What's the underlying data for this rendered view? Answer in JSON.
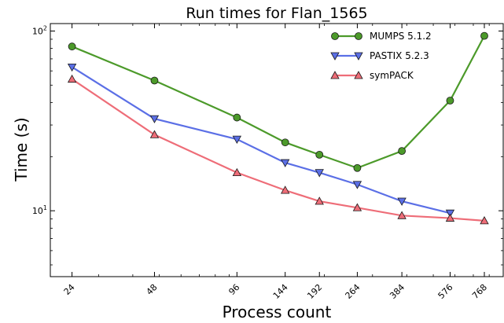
{
  "chart_data": {
    "type": "line",
    "title": "Run times for Flan_1565",
    "xlabel": "Process count",
    "ylabel": "Time (s)",
    "x_scale": "log",
    "y_scale": "log",
    "categories": [
      "24",
      "48",
      "96",
      "144",
      "192",
      "264",
      "384",
      "576",
      "768"
    ],
    "x": [
      24,
      48,
      96,
      144,
      192,
      264,
      384,
      576,
      768
    ],
    "xlim": [
      20,
      900
    ],
    "ylim": [
      4.3,
      110
    ],
    "y_ticks": [
      {
        "value": 10,
        "label": "10^1"
      },
      {
        "value": 100,
        "label": "10^2"
      }
    ],
    "grid": false,
    "legend_position": "top-right",
    "series": [
      {
        "name": "MUMPS 5.1.2",
        "color": "#4c9a2a",
        "marker": "circle",
        "values": [
          82,
          53,
          33,
          24,
          20.5,
          17.3,
          21.5,
          41,
          94
        ]
      },
      {
        "name": "PASTIX 5.2.3",
        "color": "#5b6fe6",
        "marker": "triangle-down",
        "values": [
          63,
          32.5,
          25,
          18.5,
          16.3,
          14,
          11.3,
          9.7,
          null
        ]
      },
      {
        "name": "symPACK",
        "color": "#ee6d78",
        "marker": "triangle-up",
        "values": [
          54,
          26.5,
          16.3,
          13,
          11.3,
          10.4,
          9.4,
          9.1,
          8.8
        ]
      }
    ]
  }
}
